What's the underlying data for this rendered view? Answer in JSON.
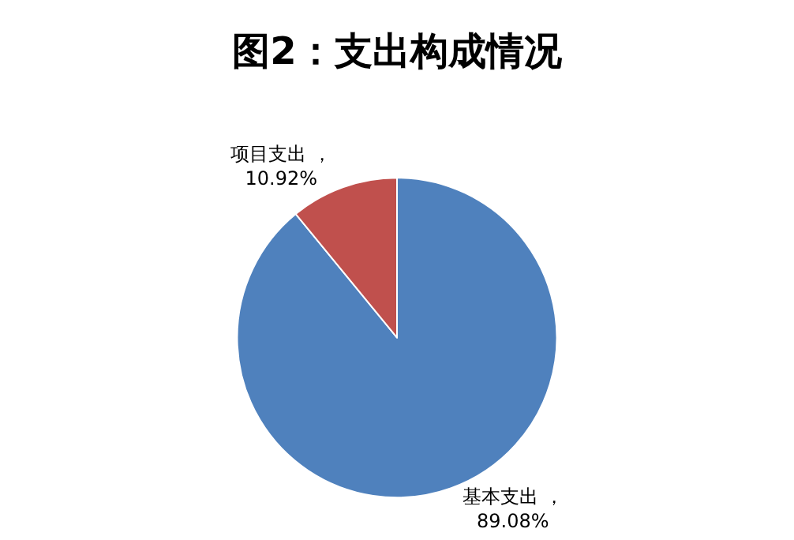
{
  "chart_data": {
    "type": "pie",
    "title": "图2：支出构成情况",
    "categories": [
      "基本支出",
      "项目支出"
    ],
    "values": [
      89.08,
      10.92
    ],
    "colors": [
      "#4f81bd",
      "#c0504d"
    ],
    "value_labels": [
      "，\n89.08%",
      "，\n10.92%"
    ],
    "legend": false
  }
}
